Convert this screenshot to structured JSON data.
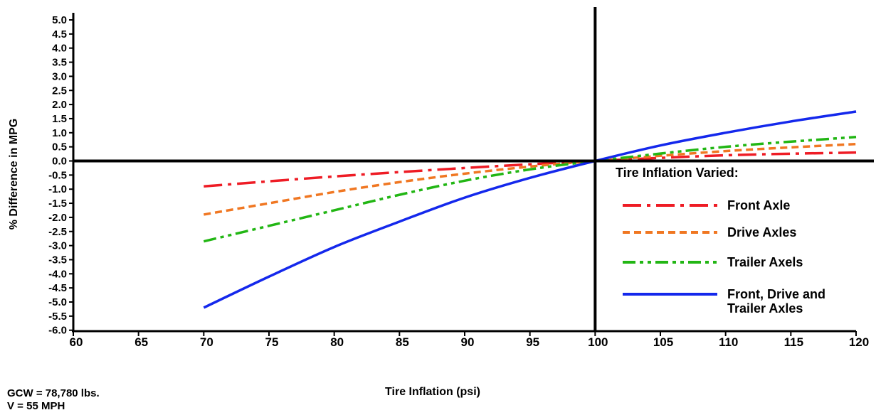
{
  "chart_data": {
    "type": "line",
    "xlabel": "Tire Inflation (psi)",
    "ylabel": "% Difference in MPG",
    "xlim": [
      60,
      120
    ],
    "ylim": [
      -6.0,
      5.0
    ],
    "xticks": [
      "60",
      "65",
      "70",
      "75",
      "80",
      "85",
      "90",
      "95",
      "100",
      "105",
      "110",
      "115",
      "120"
    ],
    "yticks": [
      "5.0",
      "4.5",
      "4.0",
      "3.5",
      "3.0",
      "2.5",
      "2.0",
      "1.5",
      "1.0",
      "0.5",
      "0.0",
      "-0.5",
      "-1.0",
      "-1.5",
      "-2.0",
      "-2.5",
      "-3.0",
      "-3.5",
      "-4.0",
      "-4.5",
      "-5.0",
      "-5.5",
      "-6.0"
    ],
    "reference_lines": {
      "x": 100,
      "y": 0.0
    },
    "legend": {
      "title": "Tire Inflation Varied:",
      "position": "right"
    },
    "series": [
      {
        "name": "Front Axle",
        "color": "#ee1c25",
        "dash": "dash-dot-long",
        "x": [
          70,
          80,
          90,
          100,
          110,
          120
        ],
        "y": [
          -0.9,
          -0.55,
          -0.25,
          0.0,
          0.2,
          0.3
        ]
      },
      {
        "name": "Drive Axles",
        "color": "#f07722",
        "dash": "dotted",
        "x": [
          70,
          75,
          80,
          85,
          90,
          95,
          100,
          110,
          120
        ],
        "y": [
          -1.9,
          -1.5,
          -1.1,
          -0.75,
          -0.45,
          -0.2,
          0.0,
          0.35,
          0.6
        ]
      },
      {
        "name": "Trailer Axels",
        "color": "#22b614",
        "dash": "dash-dot-dot",
        "x": [
          70,
          75,
          80,
          85,
          90,
          95,
          100,
          110,
          120
        ],
        "y": [
          -2.85,
          -2.3,
          -1.75,
          -1.2,
          -0.7,
          -0.3,
          0.0,
          0.5,
          0.85
        ]
      },
      {
        "name": "Front, Drive and\nTrailer Axles",
        "color": "#1428ec",
        "dash": "solid",
        "x": [
          70,
          75,
          80,
          85,
          90,
          95,
          100,
          105,
          110,
          115,
          120
        ],
        "y": [
          -5.2,
          -4.1,
          -3.05,
          -2.15,
          -1.3,
          -0.6,
          0.0,
          0.55,
          1.0,
          1.4,
          1.75
        ]
      }
    ]
  },
  "notes": {
    "gcw": "GCW = 78,780 lbs.",
    "speed": "V = 55 MPH"
  }
}
